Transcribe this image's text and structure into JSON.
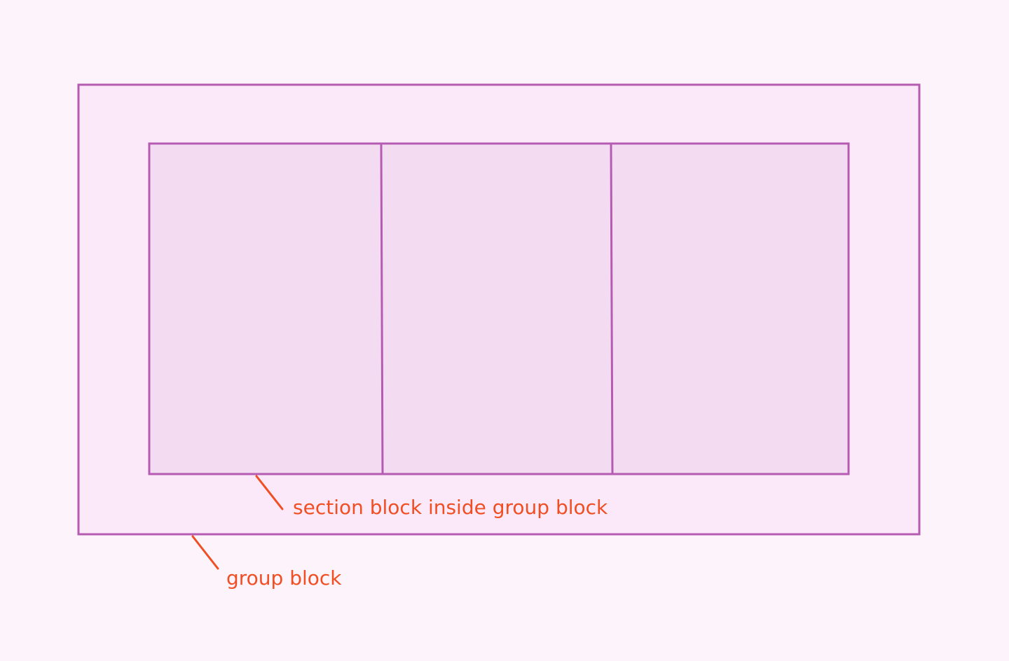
{
  "colors": {
    "background": "#fcf3fb",
    "group_fill": "#fbe9f9",
    "section_fill": "#f3dcf2",
    "outline": "#b65bb2",
    "annotation": "#f04e23"
  },
  "diagram": {
    "sections": [
      "section-1",
      "section-2",
      "section-3"
    ],
    "annotations": {
      "section_label": "section block inside group block",
      "group_label": "group block"
    }
  }
}
